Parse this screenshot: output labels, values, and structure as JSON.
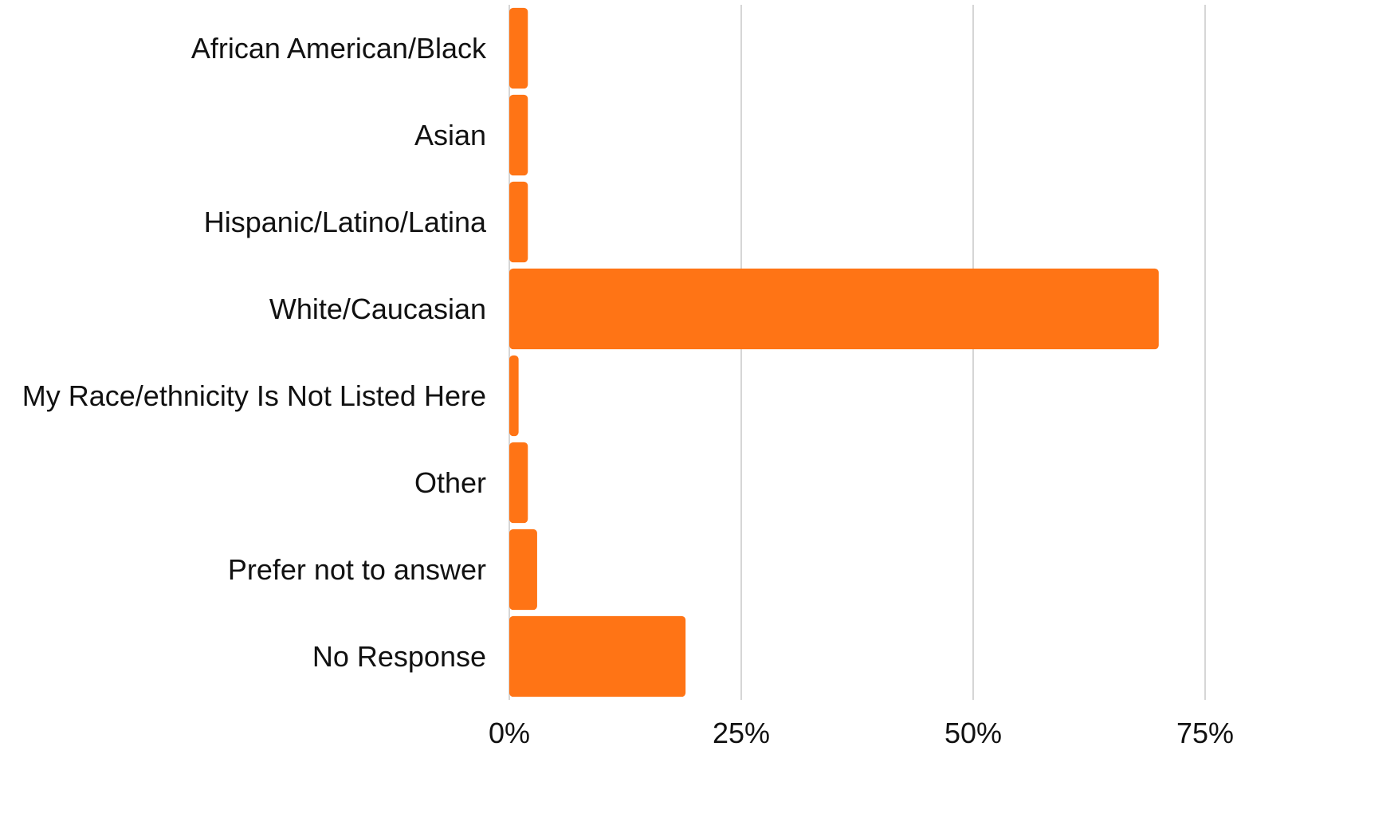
{
  "chart_data": {
    "type": "bar",
    "orientation": "horizontal",
    "categories": [
      "African American/Black",
      "Asian",
      "Hispanic/Latino/Latina",
      "White/Caucasian",
      "My Race/ethnicity Is Not Listed Here",
      "Other",
      "Prefer not to answer",
      "No Response"
    ],
    "values": [
      2,
      2,
      2,
      70,
      1,
      2,
      3,
      19
    ],
    "value_unit": "%",
    "xlim": [
      0,
      75
    ],
    "x_ticks": [
      {
        "value": 0,
        "label": "0%"
      },
      {
        "value": 25,
        "label": "25%"
      },
      {
        "value": 50,
        "label": "50%"
      },
      {
        "value": 75,
        "label": "75%"
      }
    ],
    "grid": true,
    "legend": "none",
    "bar_color": "#ff7415",
    "grid_color": "#c8c8c8"
  }
}
